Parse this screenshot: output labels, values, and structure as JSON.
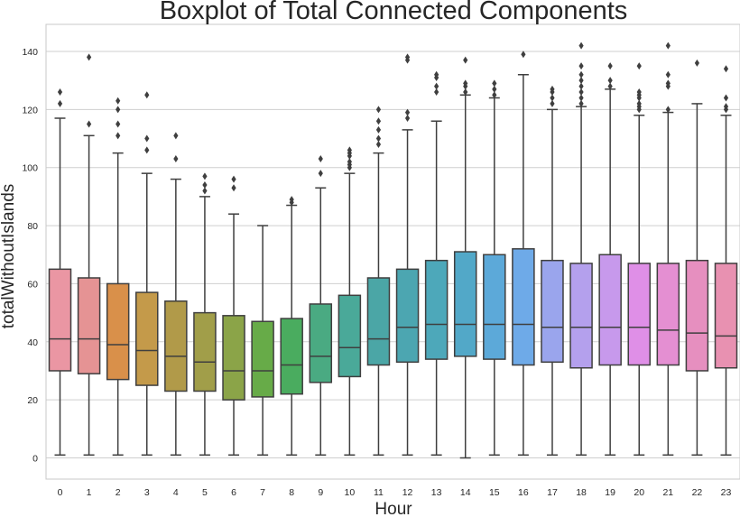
{
  "chart_data": {
    "type": "box",
    "title": "Boxplot of Total Connected Components",
    "xlabel": "Hour",
    "ylabel": "totalWithoutIslands",
    "ylim": [
      -7,
      149
    ],
    "yticks": [
      0,
      20,
      40,
      60,
      80,
      100,
      120,
      140
    ],
    "grid": "horizontal",
    "categories": [
      "0",
      "1",
      "2",
      "3",
      "4",
      "5",
      "6",
      "7",
      "8",
      "9",
      "10",
      "11",
      "12",
      "13",
      "14",
      "15",
      "16",
      "17",
      "18",
      "19",
      "20",
      "21",
      "22",
      "23"
    ],
    "colors": [
      "#ea96a3",
      "#e59394",
      "#d9904a",
      "#c49a4a",
      "#b19a49",
      "#a19e49",
      "#8ba448",
      "#67ab48",
      "#4aac5f",
      "#4aaa82",
      "#4aa999",
      "#4ba6a6",
      "#4ca6b1",
      "#4da8ba",
      "#52a8c8",
      "#5ca9d9",
      "#6eaae8",
      "#9aa5ed",
      "#b4a0ed",
      "#c799ec",
      "#df8fe7",
      "#e48fd2",
      "#e68fbf",
      "#e891b1"
    ],
    "boxes": [
      {
        "hour": "0",
        "whislo": 1,
        "q1": 30,
        "med": 41,
        "q3": 65,
        "whishi": 117,
        "fliers": [
          122,
          126
        ]
      },
      {
        "hour": "1",
        "whislo": 1,
        "q1": 29,
        "med": 41,
        "q3": 62,
        "whishi": 111,
        "fliers": [
          115,
          138
        ]
      },
      {
        "hour": "2",
        "whislo": 1,
        "q1": 27,
        "med": 39,
        "q3": 60,
        "whishi": 105,
        "fliers": [
          111,
          115,
          120,
          123
        ]
      },
      {
        "hour": "3",
        "whislo": 1,
        "q1": 25,
        "med": 37,
        "q3": 57,
        "whishi": 98,
        "fliers": [
          106,
          110,
          125
        ]
      },
      {
        "hour": "4",
        "whislo": 1,
        "q1": 23,
        "med": 35,
        "q3": 54,
        "whishi": 96,
        "fliers": [
          103,
          111
        ]
      },
      {
        "hour": "5",
        "whislo": 1,
        "q1": 23,
        "med": 33,
        "q3": 50,
        "whishi": 90,
        "fliers": [
          92,
          94,
          97
        ]
      },
      {
        "hour": "6",
        "whislo": 1,
        "q1": 20,
        "med": 30,
        "q3": 49,
        "whishi": 84,
        "fliers": [
          93,
          96
        ]
      },
      {
        "hour": "7",
        "whislo": 1,
        "q1": 21,
        "med": 30,
        "q3": 47,
        "whishi": 80,
        "fliers": []
      },
      {
        "hour": "8",
        "whislo": 1,
        "q1": 22,
        "med": 32,
        "q3": 48,
        "whishi": 87,
        "fliers": [
          88,
          89
        ]
      },
      {
        "hour": "9",
        "whislo": 1,
        "q1": 26,
        "med": 35,
        "q3": 53,
        "whishi": 93,
        "fliers": [
          98,
          103
        ]
      },
      {
        "hour": "10",
        "whislo": 1,
        "q1": 28,
        "med": 38,
        "q3": 56,
        "whishi": 98,
        "fliers": [
          100,
          101,
          102,
          104,
          105,
          106
        ]
      },
      {
        "hour": "11",
        "whislo": 1,
        "q1": 32,
        "med": 41,
        "q3": 62,
        "whishi": 105,
        "fliers": [
          108,
          110,
          113,
          116,
          120
        ]
      },
      {
        "hour": "12",
        "whislo": 1,
        "q1": 33,
        "med": 45,
        "q3": 65,
        "whishi": 113,
        "fliers": [
          117,
          119,
          137,
          138
        ]
      },
      {
        "hour": "13",
        "whislo": 1,
        "q1": 34,
        "med": 46,
        "q3": 68,
        "whishi": 116,
        "fliers": [
          126,
          128,
          131,
          132
        ]
      },
      {
        "hour": "14",
        "whislo": 0,
        "q1": 35,
        "med": 46,
        "q3": 71,
        "whishi": 125,
        "fliers": [
          126,
          128,
          129,
          137
        ]
      },
      {
        "hour": "15",
        "whislo": 1,
        "q1": 34,
        "med": 46,
        "q3": 70,
        "whishi": 124,
        "fliers": [
          125,
          127,
          129
        ]
      },
      {
        "hour": "16",
        "whislo": 1,
        "q1": 32,
        "med": 46,
        "q3": 72,
        "whishi": 132,
        "fliers": [
          139
        ]
      },
      {
        "hour": "17",
        "whislo": 1,
        "q1": 33,
        "med": 45,
        "q3": 68,
        "whishi": 120,
        "fliers": [
          122,
          124,
          126,
          127
        ]
      },
      {
        "hour": "18",
        "whislo": 1,
        "q1": 31,
        "med": 45,
        "q3": 67,
        "whishi": 121,
        "fliers": [
          122,
          124,
          126,
          128,
          130,
          132,
          135,
          142
        ]
      },
      {
        "hour": "19",
        "whislo": 1,
        "q1": 32,
        "med": 45,
        "q3": 70,
        "whishi": 127,
        "fliers": [
          128,
          130,
          135
        ]
      },
      {
        "hour": "20",
        "whislo": 1,
        "q1": 32,
        "med": 45,
        "q3": 67,
        "whishi": 118,
        "fliers": [
          120,
          121,
          122,
          124,
          125,
          126,
          135
        ]
      },
      {
        "hour": "21",
        "whislo": 1,
        "q1": 32,
        "med": 44,
        "q3": 67,
        "whishi": 119,
        "fliers": [
          120,
          128,
          129,
          132,
          142
        ]
      },
      {
        "hour": "22",
        "whislo": 1,
        "q1": 30,
        "med": 43,
        "q3": 68,
        "whishi": 122,
        "fliers": [
          136
        ]
      },
      {
        "hour": "23",
        "whislo": 1,
        "q1": 31,
        "med": 42,
        "q3": 67,
        "whishi": 118,
        "fliers": [
          120,
          121,
          124,
          134
        ]
      }
    ]
  }
}
